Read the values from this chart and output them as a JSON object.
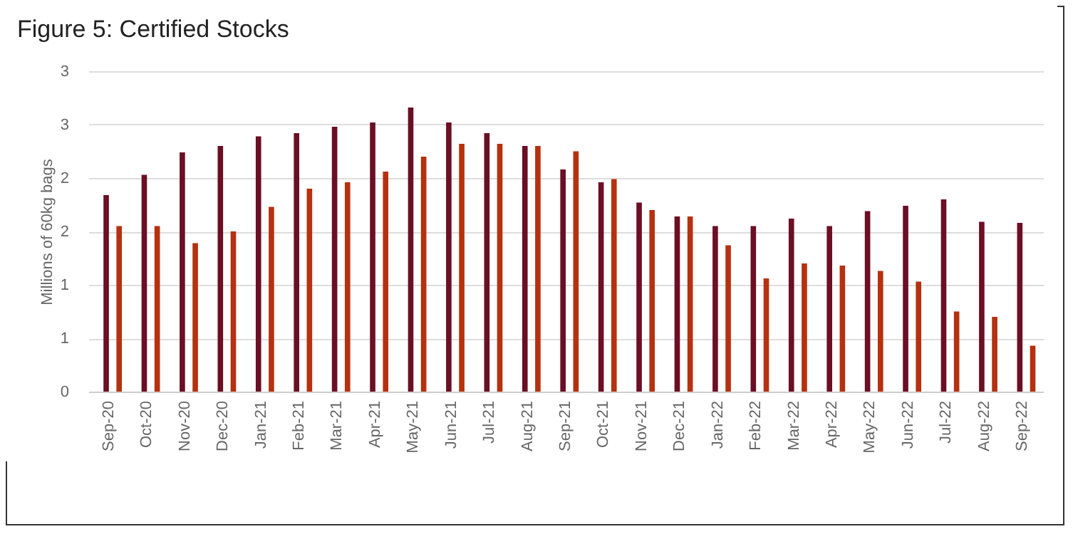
{
  "chart_data": {
    "type": "bar",
    "title": "Figure 5: Certified Stocks",
    "ylabel": "Millions of 60kg bags",
    "categories": [
      "Sep-20",
      "Oct-20",
      "Nov-20",
      "Dec-20",
      "Jan-21",
      "Feb-21",
      "Mar-21",
      "Apr-21",
      "May-21",
      "Jun-21",
      "Jul-21",
      "Aug-21",
      "Sep-21",
      "Oct-21",
      "Nov-21",
      "Dec-21",
      "Jan-22",
      "Feb-22",
      "Mar-22",
      "Apr-22",
      "May-22",
      "Jun-22",
      "Jul-22",
      "Aug-22",
      "Sep-22"
    ],
    "series": [
      {
        "color": "#6b0f24",
        "values": [
          1.84,
          2.03,
          2.24,
          2.3,
          2.39,
          2.42,
          2.48,
          2.52,
          2.66,
          2.52,
          2.42,
          2.3,
          2.08,
          1.96,
          1.77,
          1.64,
          1.55,
          1.55,
          1.62,
          1.55,
          1.69,
          1.74,
          1.8,
          1.59,
          1.58
        ]
      },
      {
        "color": "#b5310f",
        "values": [
          1.55,
          1.55,
          1.39,
          1.5,
          1.73,
          1.9,
          1.96,
          2.06,
          2.2,
          2.32,
          2.32,
          2.3,
          2.25,
          1.99,
          1.7,
          1.64,
          1.37,
          1.06,
          1.2,
          1.18,
          1.13,
          1.03,
          0.75,
          0.7,
          0.43
        ]
      }
    ],
    "ylim": [
      0,
      3
    ],
    "yticks": [
      0,
      {
        "value": 0.5,
        "label": "1"
      },
      1,
      {
        "value": 1.5,
        "label": "2"
      },
      2,
      {
        "value": 2.5,
        "label": "3"
      },
      3
    ],
    "grid": "y",
    "legend": false
  }
}
